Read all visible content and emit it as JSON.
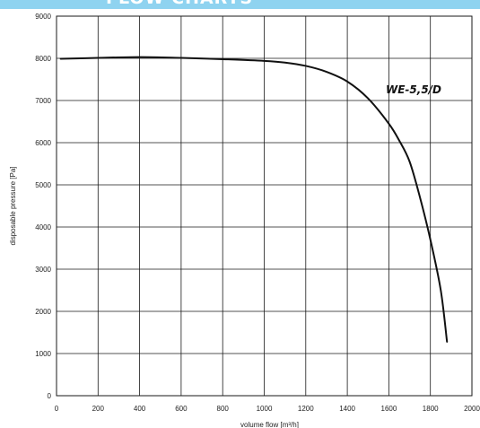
{
  "header": {
    "title": "FLOW CHARTS"
  },
  "colors": {
    "banner": "#8fd3f0",
    "grid": "#1a1a1a",
    "curve": "#111111"
  },
  "chart_data": {
    "type": "line",
    "title": "",
    "xlabel": "volume flow [m³/h]",
    "ylabel": "disposable pressure [Pa]",
    "xlim": [
      0,
      2000
    ],
    "ylim": [
      0,
      9000
    ],
    "x_ticks": [
      0,
      200,
      400,
      600,
      800,
      1000,
      1200,
      1400,
      1600,
      1800,
      2000
    ],
    "y_ticks": [
      0,
      1000,
      2000,
      3000,
      4000,
      5000,
      6000,
      7000,
      8000,
      9000
    ],
    "grid": true,
    "series": [
      {
        "name": "WE-5,5/D",
        "x": [
          20,
          200,
          400,
          600,
          800,
          1000,
          1100,
          1200,
          1300,
          1400,
          1500,
          1600,
          1650,
          1700,
          1750,
          1800,
          1850,
          1880
        ],
        "y": [
          7990,
          8010,
          8030,
          8010,
          7980,
          7940,
          7900,
          7820,
          7680,
          7450,
          7050,
          6450,
          6050,
          5550,
          4700,
          3700,
          2500,
          1280
        ]
      }
    ]
  }
}
